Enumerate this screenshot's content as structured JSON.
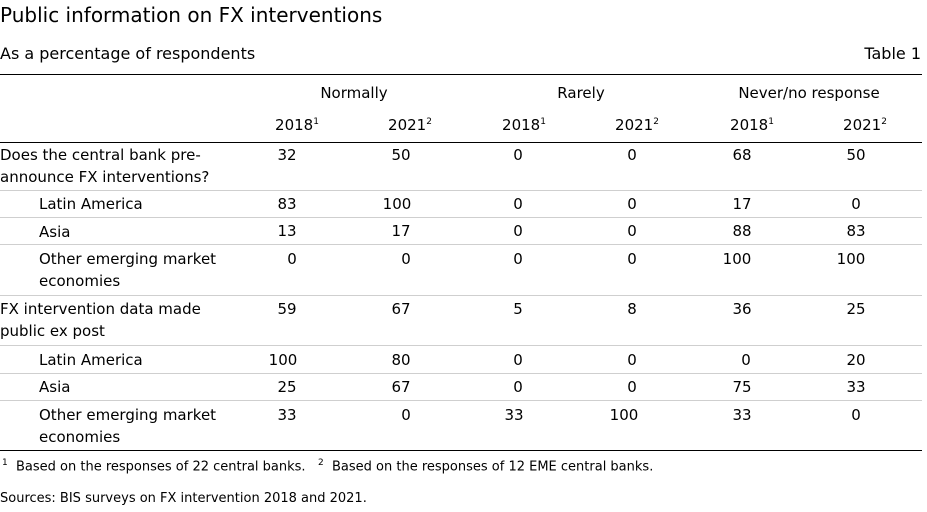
{
  "header": {
    "title": "Public information on FX interventions",
    "subtitle": "As a percentage of respondents",
    "table_label": "Table 1"
  },
  "columns": {
    "groups": [
      "Normally",
      "Rarely",
      "Never/no response"
    ],
    "years": [
      {
        "year": "2018",
        "note": "1"
      },
      {
        "year": "2021",
        "note": "2"
      },
      {
        "year": "2018",
        "note": "1"
      },
      {
        "year": "2021",
        "note": "2"
      },
      {
        "year": "2018",
        "note": "1"
      },
      {
        "year": "2021",
        "note": "2"
      }
    ]
  },
  "rows": [
    {
      "label": "Does the central bank pre-announce FX interventions?",
      "values": [
        "32",
        "50",
        "0",
        "0",
        "68",
        "50"
      ]
    },
    {
      "label": "Latin America",
      "values": [
        "83",
        "100",
        "0",
        "0",
        "17",
        "0"
      ]
    },
    {
      "label": "Asia",
      "values": [
        "13",
        "17",
        "0",
        "0",
        "88",
        "83"
      ]
    },
    {
      "label": "Other emerging market economies",
      "values": [
        "0",
        "0",
        "0",
        "0",
        "100",
        "100"
      ]
    },
    {
      "label": "FX intervention data made public ex post",
      "values": [
        "59",
        "67",
        "5",
        "8",
        "36",
        "25"
      ]
    },
    {
      "label": "Latin America",
      "values": [
        "100",
        "80",
        "0",
        "0",
        "0",
        "20"
      ]
    },
    {
      "label": "Asia",
      "values": [
        "25",
        "67",
        "0",
        "0",
        "75",
        "33"
      ]
    },
    {
      "label": "Other emerging market economies",
      "values": [
        "33",
        "0",
        "33",
        "100",
        "33",
        "0"
      ]
    }
  ],
  "footnotes": {
    "note1_mark": "1",
    "note1": "Based on the responses of 22 central banks.",
    "note2_mark": "2",
    "note2": "Based on the responses of 12 EME central banks.",
    "sources": "Sources: BIS surveys on FX intervention 2018 and 2021."
  }
}
